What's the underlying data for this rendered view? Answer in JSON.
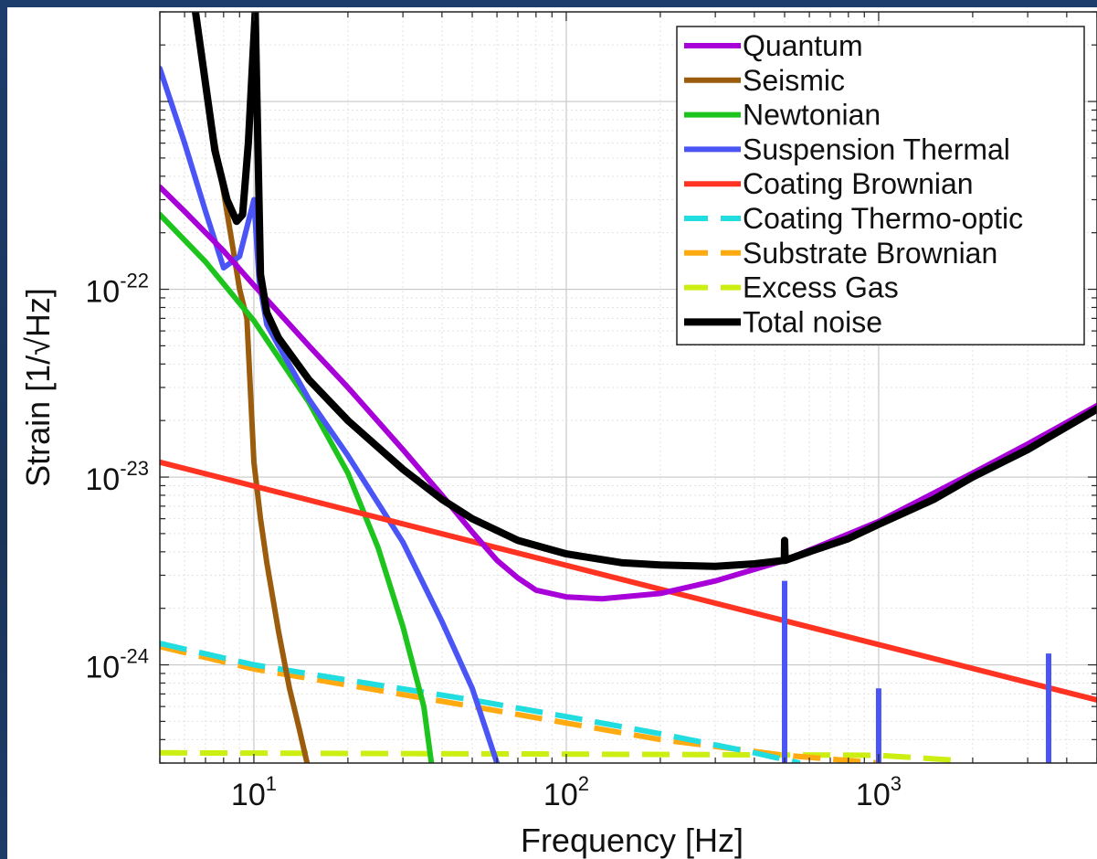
{
  "chart_data": {
    "type": "line",
    "xlabel": "Frequency [Hz]",
    "ylabel": "Strain [1/√Hz]",
    "xscale": "log",
    "yscale": "log",
    "xlim": [
      5,
      5000
    ],
    "ylim": [
      3e-25,
      3e-21
    ],
    "grid": true,
    "legend_position": "top-right",
    "x_ticks": [
      {
        "value": 10,
        "base": "10",
        "exp": "1"
      },
      {
        "value": 100,
        "base": "10",
        "exp": "2"
      },
      {
        "value": 1000,
        "base": "10",
        "exp": "3"
      }
    ],
    "y_ticks": [
      {
        "value": 1e-22,
        "base": "10",
        "exp": "-22"
      },
      {
        "value": 1e-23,
        "base": "10",
        "exp": "-23"
      },
      {
        "value": 1e-24,
        "base": "10",
        "exp": "-24"
      }
    ],
    "series": [
      {
        "name": "Quantum",
        "color": "#a800d8",
        "dash": false,
        "x": [
          5,
          6,
          8,
          10,
          15,
          20,
          30,
          40,
          50,
          60,
          70,
          80,
          100,
          130,
          200,
          300,
          500,
          1000,
          2000,
          3000,
          5000
        ],
        "y": [
          3.5e-22,
          2.6e-22,
          1.6e-22,
          1.05e-22,
          5e-23,
          3e-23,
          1.4e-23,
          8e-24,
          5.1e-24,
          3.6e-24,
          2.9e-24,
          2.5e-24,
          2.3e-24,
          2.25e-24,
          2.4e-24,
          2.8e-24,
          3.6e-24,
          5.8e-24,
          1.05e-23,
          1.5e-23,
          2.4e-23
        ]
      },
      {
        "name": "Seismic",
        "color": "#9b5c0d",
        "dash": false,
        "x": [
          6.5,
          7,
          7.5,
          8,
          8.5,
          9,
          9.5,
          10,
          10.5,
          11,
          12,
          13,
          14,
          14.8
        ],
        "y": [
          3e-21,
          1.2e-21,
          6e-22,
          3.3e-22,
          1.8e-22,
          1e-22,
          7e-23,
          1.2e-23,
          6e-24,
          3.5e-24,
          1.5e-24,
          7.5e-25,
          4.5e-25,
          3e-25
        ]
      },
      {
        "name": "Newtonian",
        "color": "#1dc41d",
        "dash": false,
        "x": [
          5,
          7,
          10,
          15,
          20,
          25,
          30,
          35,
          37
        ],
        "y": [
          2.5e-22,
          1.4e-22,
          6.8e-23,
          2.5e-23,
          1.05e-23,
          4.2e-24,
          1.6e-24,
          6e-25,
          3e-25
        ]
      },
      {
        "name": "Suspension Thermal",
        "color": "#4b55f5",
        "dash": false,
        "x": [
          5,
          6,
          7,
          8,
          9,
          10,
          10.4,
          11,
          12,
          15,
          20,
          30,
          40,
          50,
          60
        ],
        "y": [
          1.5e-21,
          6e-22,
          2.6e-22,
          1.3e-22,
          1.5e-22,
          3e-22,
          1.1e-22,
          6.5e-23,
          5e-23,
          2.6e-23,
          1.3e-23,
          4.5e-24,
          1.7e-24,
          7.5e-25,
          3e-25
        ]
      },
      {
        "name": "Coating Brownian",
        "color": "#ff3322",
        "dash": false,
        "x": [
          5,
          5000
        ],
        "y": [
          1.2e-23,
          6.5e-25
        ]
      },
      {
        "name": "Coating Thermo-optic",
        "color": "#22dde0",
        "dash": true,
        "x": [
          5,
          10,
          20,
          50,
          100,
          200,
          400,
          560
        ],
        "y": [
          1.3e-24,
          1e-24,
          8.3e-25,
          6.5e-25,
          5.3e-25,
          4.3e-25,
          3.4e-25,
          3e-25
        ]
      },
      {
        "name": "Substrate Brownian",
        "color": "#ffaa11",
        "dash": true,
        "x": [
          5,
          10,
          20,
          50,
          100,
          200,
          500,
          1000
        ],
        "y": [
          1.25e-24,
          9.5e-25,
          7.8e-25,
          6e-25,
          4.9e-25,
          4e-25,
          3.3e-25,
          3e-25
        ]
      },
      {
        "name": "Excess Gas",
        "color": "#ccee11",
        "dash": true,
        "x": [
          5,
          100,
          1000,
          1800
        ],
        "y": [
          3.4e-25,
          3.35e-25,
          3.3e-25,
          3.1e-25
        ]
      },
      {
        "name": "Total noise",
        "color": "#000000",
        "dash": false,
        "x": [
          6.5,
          7.5,
          8.2,
          8.8,
          9.2,
          9.6,
          10.1,
          10.5,
          11,
          12,
          15,
          20,
          30,
          40,
          50,
          70,
          100,
          150,
          200,
          300,
          400,
          499,
          500,
          502,
          600,
          800,
          1000,
          1500,
          2000,
          3000,
          5000
        ],
        "y": [
          3e-21,
          5.5e-22,
          3e-22,
          2.3e-22,
          2.5e-22,
          6e-22,
          3e-21,
          1.2e-22,
          7.5e-23,
          5.5e-23,
          3.3e-23,
          2e-23,
          1.1e-23,
          7.6e-24,
          6e-24,
          4.6e-24,
          3.9e-24,
          3.5e-24,
          3.4e-24,
          3.35e-24,
          3.45e-24,
          3.6e-24,
          4.6e-24,
          3.6e-24,
          4e-24,
          4.7e-24,
          5.6e-24,
          7.6e-24,
          1e-23,
          1.4e-23,
          2.3e-23
        ]
      }
    ],
    "line_features": [
      {
        "series": "Suspension Thermal",
        "x": 500,
        "y_top": 2.8e-24
      },
      {
        "series": "Suspension Thermal",
        "x": 1000,
        "y_top": 7.5e-25
      },
      {
        "series": "Suspension Thermal",
        "x": 3500,
        "y_top": 1.15e-24
      }
    ]
  }
}
